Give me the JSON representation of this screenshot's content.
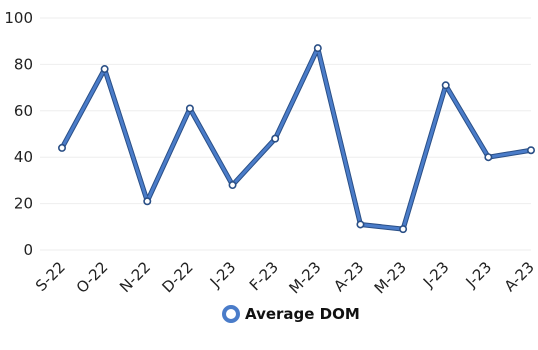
{
  "chart_data": {
    "type": "line",
    "categories": [
      "S-22",
      "O-22",
      "N-22",
      "D-22",
      "J-23",
      "F-23",
      "M-23",
      "A-23",
      "M-23",
      "J-23",
      "J-23",
      "A-23"
    ],
    "series": [
      {
        "name": "Average DOM",
        "values": [
          44,
          78,
          21,
          61,
          28,
          48,
          87,
          11,
          9,
          71,
          40,
          43
        ]
      }
    ],
    "ylim": [
      0,
      100
    ],
    "yticks": [
      0,
      20,
      40,
      60,
      80,
      100
    ],
    "grid": true,
    "legend_position": "bottom",
    "colors": {
      "line": "#4a7cc9",
      "line_outline": "#2a4f86",
      "marker_fill": "#ffffff"
    }
  }
}
